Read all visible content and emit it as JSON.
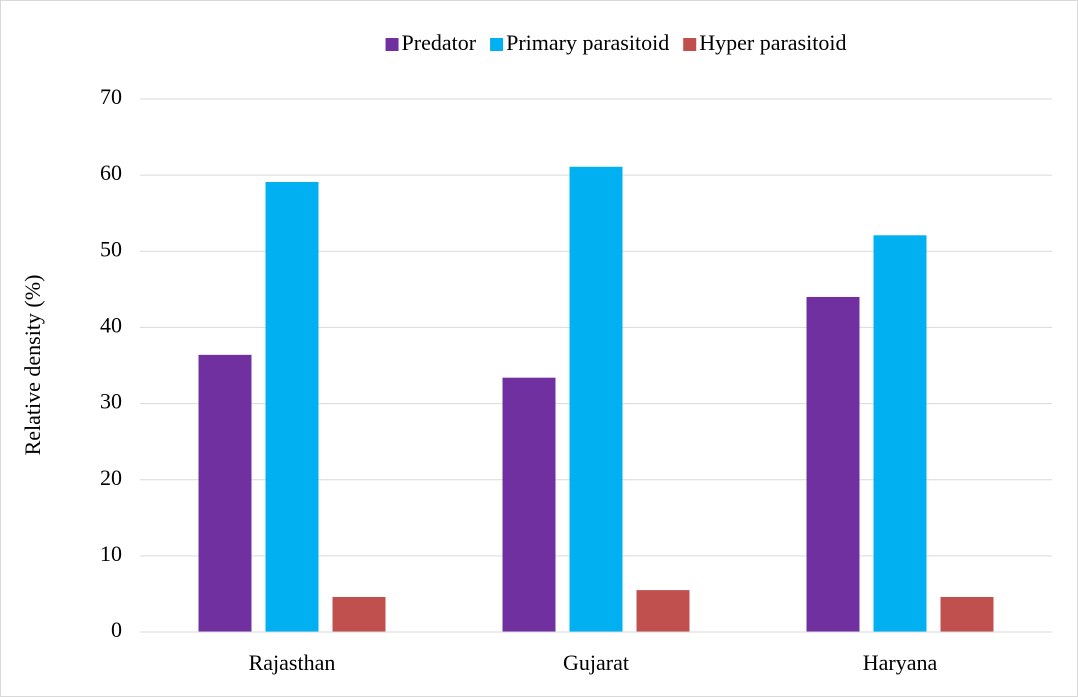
{
  "chart_data": {
    "type": "bar",
    "y_label": "Relative density (%)",
    "categories": [
      "Rajasthan",
      "Gujarat",
      "Haryana"
    ],
    "series": [
      {
        "name": "Predator",
        "color": "#7030a0",
        "values": [
          36.4,
          33.4,
          44.0
        ]
      },
      {
        "name": "Primary parasitoid",
        "color": "#00b0f0",
        "values": [
          59.1,
          61.1,
          52.1
        ]
      },
      {
        "name": "Hyper parasitoid",
        "color": "#c0504d",
        "values": [
          4.6,
          5.5,
          4.6
        ]
      }
    ],
    "ylim": [
      0,
      70
    ],
    "yticks": [
      0,
      10,
      20,
      30,
      40,
      50,
      60,
      70
    ],
    "grid": true,
    "legend": "top"
  }
}
